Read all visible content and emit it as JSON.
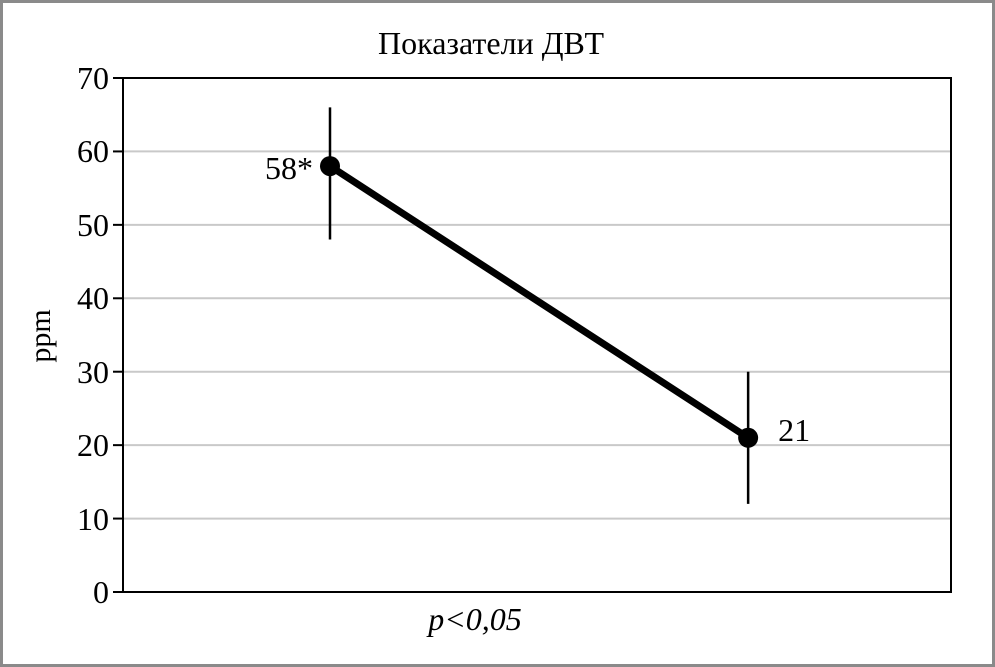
{
  "figure": {
    "background": "#ffffff",
    "border_color": "#8a8a8a"
  },
  "chart_data": {
    "type": "line",
    "title": "Показатели ДВТ",
    "ylabel": "ppm",
    "xlabel": "",
    "annotation": "p<0,05",
    "ylim": [
      0,
      70
    ],
    "yticks": [
      0,
      10,
      20,
      30,
      40,
      50,
      60,
      70
    ],
    "grid": "horizontal-only",
    "legend": "none",
    "colors": {
      "series_line": "#000000",
      "marker": "#000000",
      "error_bar": "#000000",
      "gridline": "#c9c9c9",
      "axis": "#000000"
    },
    "series": [
      {
        "points": [
          {
            "label": "58*",
            "value": 58,
            "error_low": 48,
            "error_high": 66,
            "x_fraction": 0.25,
            "label_side": "left"
          },
          {
            "label": "21",
            "value": 21,
            "error_low": 12,
            "error_high": 30,
            "x_fraction": 0.755,
            "label_side": "right"
          }
        ]
      }
    ]
  }
}
